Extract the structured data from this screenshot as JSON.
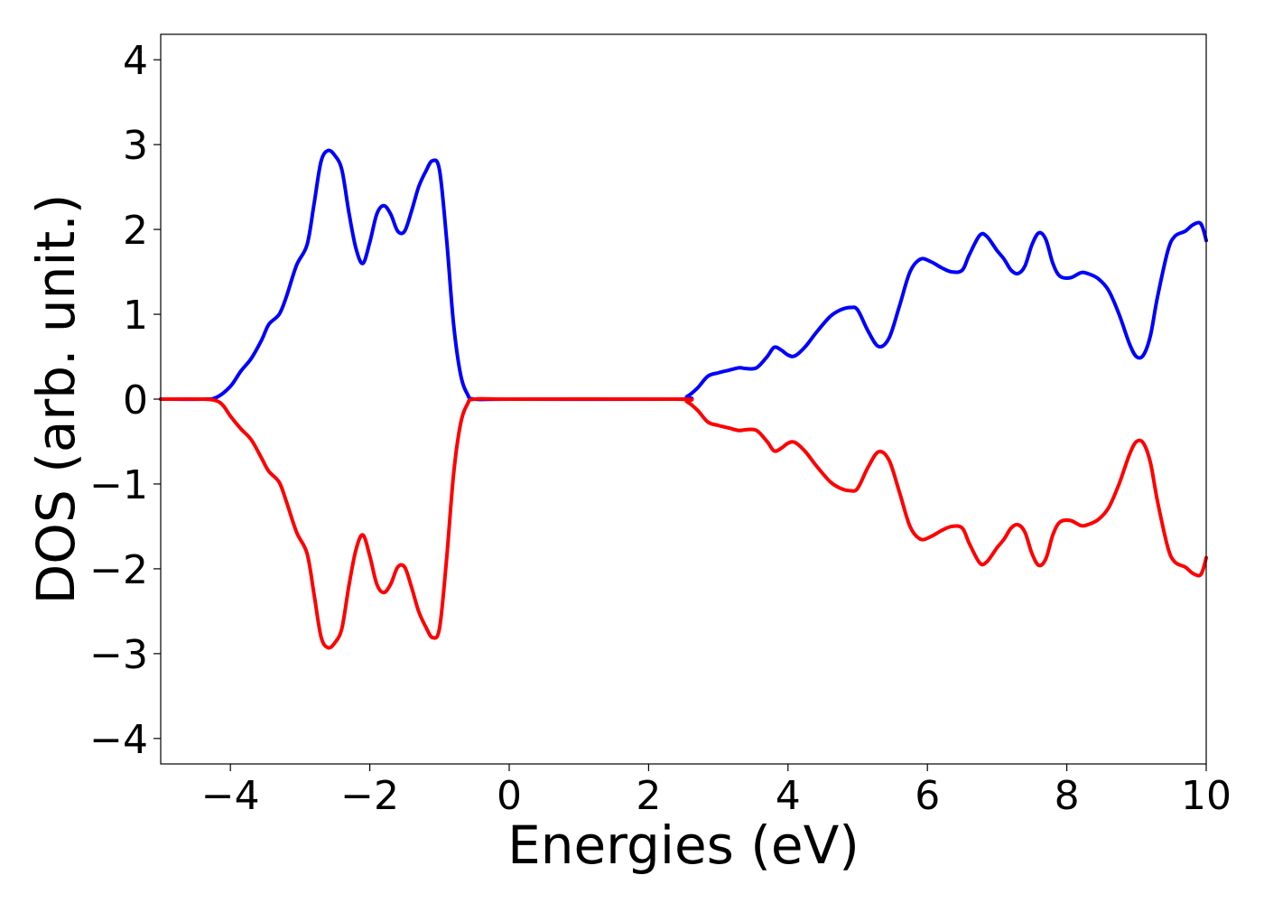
{
  "chart_data": {
    "type": "line",
    "xlabel": "Energies (eV)",
    "ylabel": "DOS (arb. unit.)",
    "xlim": [
      -5,
      10
    ],
    "ylim": [
      -4.3,
      4.3
    ],
    "x_ticks": [
      -4,
      -2,
      0,
      2,
      4,
      6,
      8,
      10
    ],
    "x_tick_labels": [
      "−4",
      "−2",
      "0",
      "2",
      "4",
      "6",
      "8",
      "10"
    ],
    "y_ticks": [
      -4,
      -3,
      -2,
      -1,
      0,
      1,
      2,
      3,
      4
    ],
    "y_tick_labels": [
      "−4",
      "−3",
      "−2",
      "−1",
      "0",
      "1",
      "2",
      "3",
      "4"
    ],
    "grid": false,
    "series": [
      {
        "color": "#0000ff",
        "points": [
          [
            -5.0,
            0.0
          ],
          [
            -4.4,
            0.0
          ],
          [
            -4.2,
            0.02
          ],
          [
            -4.0,
            0.15
          ],
          [
            -3.85,
            0.33
          ],
          [
            -3.7,
            0.48
          ],
          [
            -3.55,
            0.7
          ],
          [
            -3.45,
            0.88
          ],
          [
            -3.3,
            1.0
          ],
          [
            -3.2,
            1.2
          ],
          [
            -3.05,
            1.58
          ],
          [
            -2.9,
            1.82
          ],
          [
            -2.8,
            2.3
          ],
          [
            -2.7,
            2.8
          ],
          [
            -2.6,
            2.93
          ],
          [
            -2.5,
            2.87
          ],
          [
            -2.4,
            2.7
          ],
          [
            -2.3,
            2.2
          ],
          [
            -2.2,
            1.78
          ],
          [
            -2.1,
            1.6
          ],
          [
            -2.0,
            1.85
          ],
          [
            -1.9,
            2.18
          ],
          [
            -1.8,
            2.28
          ],
          [
            -1.7,
            2.18
          ],
          [
            -1.6,
            1.98
          ],
          [
            -1.5,
            1.98
          ],
          [
            -1.4,
            2.22
          ],
          [
            -1.3,
            2.5
          ],
          [
            -1.2,
            2.68
          ],
          [
            -1.1,
            2.81
          ],
          [
            -1.0,
            2.7
          ],
          [
            -0.9,
            1.9
          ],
          [
            -0.8,
            0.9
          ],
          [
            -0.7,
            0.3
          ],
          [
            -0.6,
            0.06
          ],
          [
            -0.5,
            0.0
          ],
          [
            0.0,
            0.0
          ],
          [
            2.4,
            0.0
          ],
          [
            2.55,
            0.03
          ],
          [
            2.7,
            0.13
          ],
          [
            2.85,
            0.27
          ],
          [
            3.0,
            0.31
          ],
          [
            3.15,
            0.34
          ],
          [
            3.3,
            0.37
          ],
          [
            3.4,
            0.36
          ],
          [
            3.55,
            0.37
          ],
          [
            3.7,
            0.5
          ],
          [
            3.8,
            0.61
          ],
          [
            3.9,
            0.58
          ],
          [
            4.0,
            0.52
          ],
          [
            4.1,
            0.51
          ],
          [
            4.25,
            0.62
          ],
          [
            4.4,
            0.78
          ],
          [
            4.6,
            0.97
          ],
          [
            4.75,
            1.05
          ],
          [
            4.9,
            1.08
          ],
          [
            5.0,
            1.05
          ],
          [
            5.15,
            0.8
          ],
          [
            5.3,
            0.62
          ],
          [
            5.45,
            0.72
          ],
          [
            5.6,
            1.1
          ],
          [
            5.75,
            1.5
          ],
          [
            5.9,
            1.65
          ],
          [
            6.05,
            1.62
          ],
          [
            6.2,
            1.55
          ],
          [
            6.35,
            1.5
          ],
          [
            6.5,
            1.52
          ],
          [
            6.6,
            1.7
          ],
          [
            6.75,
            1.93
          ],
          [
            6.85,
            1.92
          ],
          [
            7.0,
            1.75
          ],
          [
            7.1,
            1.65
          ],
          [
            7.2,
            1.52
          ],
          [
            7.3,
            1.48
          ],
          [
            7.4,
            1.57
          ],
          [
            7.5,
            1.82
          ],
          [
            7.6,
            1.96
          ],
          [
            7.7,
            1.88
          ],
          [
            7.8,
            1.6
          ],
          [
            7.9,
            1.45
          ],
          [
            8.05,
            1.43
          ],
          [
            8.2,
            1.49
          ],
          [
            8.3,
            1.48
          ],
          [
            8.45,
            1.42
          ],
          [
            8.6,
            1.28
          ],
          [
            8.75,
            1.0
          ],
          [
            8.9,
            0.65
          ],
          [
            9.0,
            0.5
          ],
          [
            9.1,
            0.52
          ],
          [
            9.2,
            0.75
          ],
          [
            9.3,
            1.2
          ],
          [
            9.45,
            1.75
          ],
          [
            9.55,
            1.92
          ],
          [
            9.7,
            1.98
          ],
          [
            9.8,
            2.05
          ],
          [
            9.9,
            2.08
          ],
          [
            9.95,
            2.02
          ],
          [
            10.0,
            1.87
          ]
        ]
      },
      {
        "color": "#ff0000",
        "points": [
          [
            -5.0,
            0.0
          ],
          [
            -4.4,
            0.0
          ],
          [
            -4.2,
            -0.02
          ],
          [
            -4.1,
            -0.08
          ],
          [
            -4.0,
            -0.2
          ],
          [
            -3.85,
            -0.35
          ],
          [
            -3.7,
            -0.48
          ],
          [
            -3.55,
            -0.7
          ],
          [
            -3.45,
            -0.85
          ],
          [
            -3.3,
            -0.98
          ],
          [
            -3.2,
            -1.2
          ],
          [
            -3.05,
            -1.57
          ],
          [
            -2.9,
            -1.82
          ],
          [
            -2.8,
            -2.3
          ],
          [
            -2.7,
            -2.8
          ],
          [
            -2.6,
            -2.93
          ],
          [
            -2.5,
            -2.87
          ],
          [
            -2.4,
            -2.7
          ],
          [
            -2.3,
            -2.2
          ],
          [
            -2.2,
            -1.78
          ],
          [
            -2.1,
            -1.6
          ],
          [
            -2.0,
            -1.85
          ],
          [
            -1.9,
            -2.18
          ],
          [
            -1.8,
            -2.28
          ],
          [
            -1.7,
            -2.18
          ],
          [
            -1.6,
            -1.98
          ],
          [
            -1.5,
            -1.98
          ],
          [
            -1.4,
            -2.22
          ],
          [
            -1.3,
            -2.5
          ],
          [
            -1.2,
            -2.68
          ],
          [
            -1.1,
            -2.81
          ],
          [
            -1.0,
            -2.7
          ],
          [
            -0.9,
            -1.9
          ],
          [
            -0.8,
            -0.9
          ],
          [
            -0.7,
            -0.3
          ],
          [
            -0.6,
            -0.06
          ],
          [
            -0.5,
            0.0
          ],
          [
            0.0,
            0.0
          ],
          [
            2.4,
            0.0
          ],
          [
            2.55,
            -0.03
          ],
          [
            2.7,
            -0.13
          ],
          [
            2.85,
            -0.27
          ],
          [
            3.0,
            -0.31
          ],
          [
            3.15,
            -0.34
          ],
          [
            3.3,
            -0.37
          ],
          [
            3.4,
            -0.36
          ],
          [
            3.55,
            -0.37
          ],
          [
            3.7,
            -0.5
          ],
          [
            3.8,
            -0.61
          ],
          [
            3.9,
            -0.58
          ],
          [
            4.0,
            -0.52
          ],
          [
            4.1,
            -0.51
          ],
          [
            4.25,
            -0.62
          ],
          [
            4.4,
            -0.78
          ],
          [
            4.6,
            -0.97
          ],
          [
            4.75,
            -1.05
          ],
          [
            4.9,
            -1.08
          ],
          [
            5.0,
            -1.05
          ],
          [
            5.15,
            -0.8
          ],
          [
            5.3,
            -0.62
          ],
          [
            5.45,
            -0.72
          ],
          [
            5.6,
            -1.1
          ],
          [
            5.75,
            -1.5
          ],
          [
            5.9,
            -1.65
          ],
          [
            6.05,
            -1.62
          ],
          [
            6.2,
            -1.55
          ],
          [
            6.35,
            -1.5
          ],
          [
            6.5,
            -1.52
          ],
          [
            6.6,
            -1.7
          ],
          [
            6.75,
            -1.93
          ],
          [
            6.85,
            -1.92
          ],
          [
            7.0,
            -1.75
          ],
          [
            7.1,
            -1.65
          ],
          [
            7.2,
            -1.52
          ],
          [
            7.3,
            -1.48
          ],
          [
            7.4,
            -1.57
          ],
          [
            7.5,
            -1.82
          ],
          [
            7.6,
            -1.96
          ],
          [
            7.7,
            -1.88
          ],
          [
            7.8,
            -1.6
          ],
          [
            7.9,
            -1.45
          ],
          [
            8.05,
            -1.43
          ],
          [
            8.2,
            -1.49
          ],
          [
            8.3,
            -1.48
          ],
          [
            8.45,
            -1.42
          ],
          [
            8.6,
            -1.28
          ],
          [
            8.75,
            -1.0
          ],
          [
            8.9,
            -0.65
          ],
          [
            9.0,
            -0.5
          ],
          [
            9.1,
            -0.52
          ],
          [
            9.2,
            -0.75
          ],
          [
            9.3,
            -1.2
          ],
          [
            9.45,
            -1.75
          ],
          [
            9.55,
            -1.92
          ],
          [
            9.7,
            -1.98
          ],
          [
            9.8,
            -2.05
          ],
          [
            9.9,
            -2.08
          ],
          [
            9.95,
            -2.02
          ],
          [
            10.0,
            -1.87
          ]
        ]
      }
    ]
  }
}
